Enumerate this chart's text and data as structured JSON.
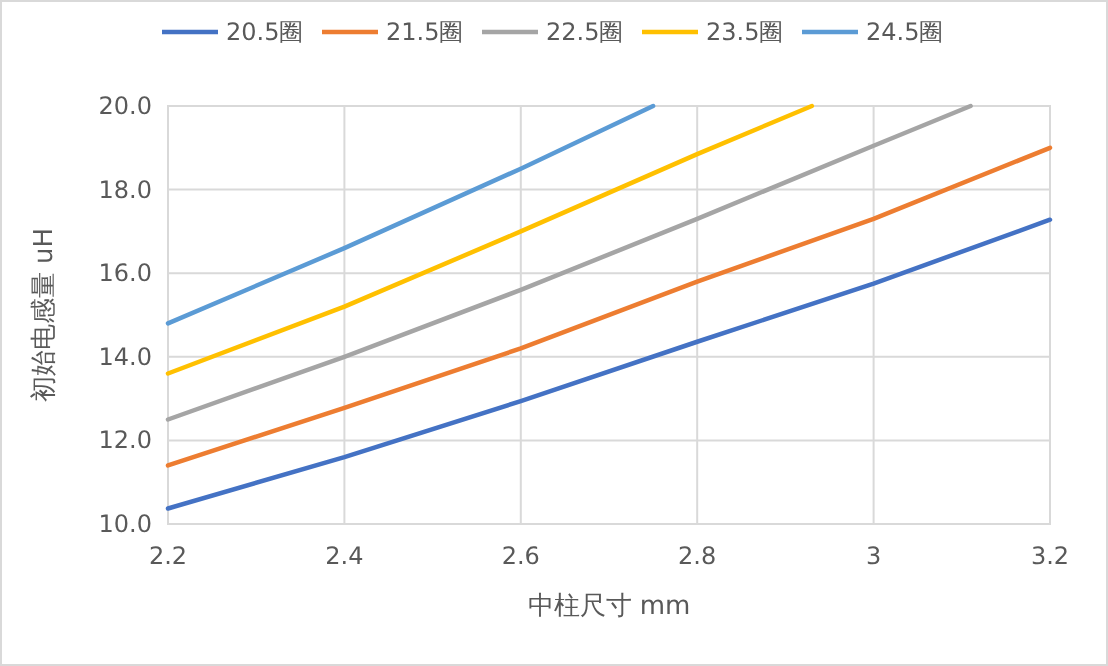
{
  "chart_data": {
    "type": "line",
    "xlabel": "中柱尺寸 mm",
    "ylabel": "初始电感量 uH",
    "xlim": [
      2.2,
      3.2
    ],
    "xticks": [
      2.2,
      2.4,
      2.6,
      2.8,
      3,
      3.2
    ],
    "ylim": [
      10,
      20
    ],
    "yticks": [
      {
        "value": 10,
        "label": "10.0"
      },
      {
        "value": 12,
        "label": "12.0"
      },
      {
        "value": 14,
        "label": "14.0"
      },
      {
        "value": 16,
        "label": "16.0"
      },
      {
        "value": 18,
        "label": "18.0"
      },
      {
        "value": 20,
        "label": "20.0"
      }
    ],
    "grid": true,
    "legend": "top",
    "line_style": "solid",
    "series": [
      {
        "name": "20.5圈",
        "color": "#4472c4",
        "x": [
          2.2,
          2.4,
          2.6,
          2.8,
          3.0,
          3.2
        ],
        "values": [
          10.37,
          11.6,
          12.94,
          14.36,
          15.75,
          17.28
        ]
      },
      {
        "name": "21.5圈",
        "color": "#ed7d31",
        "x": [
          2.2,
          2.4,
          2.6,
          2.8,
          3.0,
          3.2
        ],
        "values": [
          11.4,
          12.78,
          14.2,
          15.8,
          17.3,
          19.0
        ]
      },
      {
        "name": "22.5圈",
        "color": "#a5a5a5",
        "x": [
          2.2,
          2.4,
          2.6,
          2.8,
          3.0,
          3.11
        ],
        "values": [
          12.5,
          14.0,
          15.6,
          17.3,
          19.05,
          20.0
        ]
      },
      {
        "name": "23.5圈",
        "color": "#ffc000",
        "x": [
          2.2,
          2.4,
          2.6,
          2.8,
          2.93
        ],
        "values": [
          13.6,
          15.2,
          17.0,
          18.85,
          20.0
        ]
      },
      {
        "name": "24.5圈",
        "color": "#5b9bd5",
        "x": [
          2.2,
          2.4,
          2.6,
          2.75
        ],
        "values": [
          14.8,
          16.6,
          18.5,
          20.0
        ]
      }
    ]
  }
}
